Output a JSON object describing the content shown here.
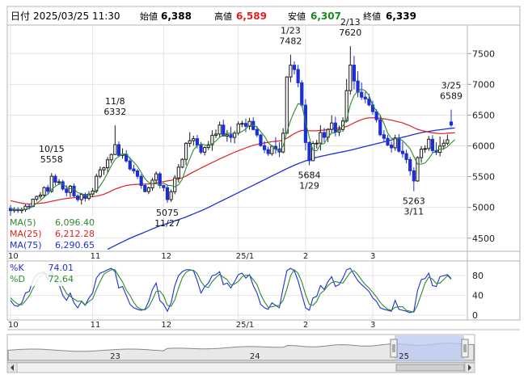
{
  "header": {
    "date_label": "日付",
    "datetime": "2025/03/25 11:30",
    "open_label": "始値",
    "open_value": "6,388",
    "high_label": "高値",
    "high_value": "6,589",
    "low_label": "安値",
    "low_value": "6,307",
    "close_label": "終値",
    "close_value": "6,339"
  },
  "colors": {
    "up": "#1a1a1a",
    "down": "#1c2fd6",
    "ma5": "#2e8b2e",
    "ma25": "#e02020",
    "ma75": "#1c2fd6",
    "k": "#1c2fd6",
    "d": "#2e8b2e",
    "high_value": "#e02020",
    "low_value": "#1a8a1a",
    "navigator_fill": "#b8c8f0",
    "navigator_line": "#888888"
  },
  "legend_main": [
    {
      "label": "MA(5)",
      "value": "6,096.40",
      "color": "#2e8b2e"
    },
    {
      "label": "MA(25)",
      "value": "6,212.28",
      "color": "#e02020"
    },
    {
      "label": "MA(75)",
      "value": "6,290.65",
      "color": "#1c2fd6"
    }
  ],
  "legend_stoch": [
    {
      "label": "%K",
      "value": "74.01",
      "color": "#1c2fd6"
    },
    {
      "label": "%D",
      "value": "72.64",
      "color": "#2e8b2e"
    }
  ],
  "chart_data": {
    "type": "candlestick",
    "x_axis_labels": [
      {
        "label": "10",
        "index": 0
      },
      {
        "label": "11",
        "index": 22
      },
      {
        "label": "12",
        "index": 41
      },
      {
        "label": "25/1",
        "index": 61
      },
      {
        "label": "2",
        "index": 79
      },
      {
        "label": "3",
        "index": 97
      }
    ],
    "price_axis": {
      "ticks": [
        4500,
        5000,
        5500,
        6000,
        6500,
        7000,
        7500
      ],
      "range": [
        4300,
        7950
      ]
    },
    "stoch_axis": {
      "ticks": [
        0,
        40,
        80
      ],
      "range": [
        -8,
        108
      ]
    },
    "annotations": [
      {
        "text1": "10/15",
        "text2": "5558",
        "index": 11,
        "price": 5558,
        "position": "above"
      },
      {
        "text1": "11/8",
        "text2": "6332",
        "index": 28,
        "price": 6332,
        "position": "above"
      },
      {
        "text1": "5075",
        "text2": "11/27",
        "index": 42,
        "price": 5075,
        "position": "below"
      },
      {
        "text1": "1/23",
        "text2": "7482",
        "index": 75,
        "price": 7482,
        "position": "above"
      },
      {
        "text1": "5684",
        "text2": "1/29",
        "index": 80,
        "price": 5684,
        "position": "below"
      },
      {
        "text1": "2/13",
        "text2": "7620",
        "index": 91,
        "price": 7620,
        "position": "above"
      },
      {
        "text1": "5263",
        "text2": "3/11",
        "index": 108,
        "price": 5263,
        "position": "below"
      },
      {
        "text1": "3/25",
        "text2": "6589",
        "index": 118,
        "price": 6589,
        "position": "above"
      }
    ],
    "ohlc": [
      [
        4984,
        5039,
        4865,
        4947
      ],
      [
        4947,
        5003,
        4912,
        4966
      ],
      [
        4966,
        5002,
        4910,
        4947
      ],
      [
        4947,
        4996,
        4902,
        4962
      ],
      [
        4962,
        5050,
        4928,
        5020
      ],
      [
        5020,
        5057,
        4964,
        5016
      ],
      [
        5016,
        5134,
        5003,
        5134
      ],
      [
        5134,
        5191,
        5098,
        5179
      ],
      [
        5179,
        5249,
        5134,
        5200
      ],
      [
        5200,
        5340,
        5158,
        5322
      ],
      [
        5322,
        5366,
        5205,
        5263
      ],
      [
        5263,
        5558,
        5235,
        5506
      ],
      [
        5506,
        5540,
        5358,
        5409
      ],
      [
        5409,
        5461,
        5364,
        5416
      ],
      [
        5416,
        5447,
        5272,
        5300
      ],
      [
        5300,
        5360,
        5181,
        5243
      ],
      [
        5243,
        5363,
        5167,
        5345
      ],
      [
        5345,
        5389,
        5164,
        5186
      ],
      [
        5186,
        5213,
        5093,
        5127
      ],
      [
        5127,
        5238,
        5046,
        5212
      ],
      [
        5212,
        5241,
        5096,
        5148
      ],
      [
        5148,
        5264,
        5113,
        5216
      ],
      [
        5216,
        5315,
        5166,
        5266
      ],
      [
        5266,
        5547,
        5232,
        5506
      ],
      [
        5506,
        5663,
        5471,
        5610
      ],
      [
        5610,
        5661,
        5528,
        5644
      ],
      [
        5644,
        5818,
        5554,
        5773
      ],
      [
        5773,
        5874,
        5719,
        5860
      ],
      [
        5860,
        6332,
        5851,
        6020
      ],
      [
        6020,
        6073,
        5815,
        5844
      ],
      [
        5844,
        5960,
        5792,
        5863
      ],
      [
        5863,
        5930,
        5727,
        5755
      ],
      [
        5755,
        5817,
        5599,
        5625
      ],
      [
        5625,
        5696,
        5547,
        5593
      ],
      [
        5593,
        5625,
        5462,
        5506
      ],
      [
        5506,
        5543,
        5306,
        5356
      ],
      [
        5356,
        5387,
        5245,
        5257
      ],
      [
        5257,
        5339,
        5215,
        5317
      ],
      [
        5317,
        5479,
        5271,
        5443
      ],
      [
        5443,
        5586,
        5400,
        5546
      ],
      [
        5546,
        5578,
        5308,
        5357
      ],
      [
        5357,
        5371,
        5259,
        5320
      ],
      [
        5320,
        5375,
        5075,
        5127
      ],
      [
        5127,
        5291,
        5089,
        5255
      ],
      [
        5255,
        5527,
        5213,
        5479
      ],
      [
        5479,
        5705,
        5405,
        5654
      ],
      [
        5654,
        5800,
        5635,
        5781
      ],
      [
        5781,
        6061,
        5685,
        6042
      ],
      [
        6042,
        6224,
        5979,
        6084
      ],
      [
        6084,
        6165,
        6003,
        6116
      ],
      [
        6116,
        6176,
        5958,
        6012
      ],
      [
        6012,
        6065,
        5867,
        5897
      ],
      [
        5897,
        5992,
        5844,
        5973
      ],
      [
        5973,
        6079,
        5932,
        6018
      ],
      [
        6018,
        6253,
        5919,
        6172
      ],
      [
        6172,
        6265,
        6128,
        6192
      ],
      [
        6192,
        6395,
        6141,
        6338
      ],
      [
        6338,
        6423,
        6155,
        6159
      ],
      [
        6159,
        6258,
        6068,
        6181
      ],
      [
        6181,
        6312,
        6052,
        6137
      ],
      [
        6137,
        6241,
        6042,
        6208
      ],
      [
        6208,
        6398,
        6171,
        6356
      ],
      [
        6356,
        6409,
        6300,
        6365
      ],
      [
        6365,
        6447,
        6222,
        6317
      ],
      [
        6317,
        6455,
        6262,
        6398
      ],
      [
        6398,
        6464,
        6250,
        6265
      ],
      [
        6265,
        6325,
        6141,
        6177
      ],
      [
        6177,
        6194,
        5985,
        6004
      ],
      [
        6004,
        6077,
        5882,
        5938
      ],
      [
        5938,
        5986,
        5836,
        5874
      ],
      [
        5874,
        6014,
        5840,
        5993
      ],
      [
        5993,
        6140,
        5871,
        5951
      ],
      [
        5951,
        6062,
        5816,
        5900
      ],
      [
        5900,
        6286,
        5879,
        6205
      ],
      [
        6205,
        7133,
        6200,
        7120
      ],
      [
        7120,
        7482,
        7034,
        7311
      ],
      [
        7311,
        7374,
        7158,
        7240
      ],
      [
        7240,
        7317,
        6952,
        7025
      ],
      [
        7025,
        7068,
        6629,
        6662
      ],
      [
        6662,
        6760,
        5927,
        6054
      ],
      [
        6054,
        6073,
        5684,
        5759
      ],
      [
        5759,
        6079,
        5755,
        6040
      ],
      [
        6040,
        6098,
        5959,
        6044
      ],
      [
        6044,
        6337,
        5927,
        6217
      ],
      [
        6217,
        6290,
        6062,
        6138
      ],
      [
        6138,
        6286,
        6060,
        6267
      ],
      [
        6267,
        6497,
        6215,
        6372
      ],
      [
        6372,
        6472,
        6153,
        6225
      ],
      [
        6225,
        6330,
        6158,
        6266
      ],
      [
        6266,
        6464,
        6227,
        6405
      ],
      [
        6405,
        7088,
        6379,
        6898
      ],
      [
        6898,
        7620,
        6830,
        7312
      ],
      [
        7312,
        7461,
        6915,
        7054
      ],
      [
        7054,
        7212,
        6788,
        6872
      ],
      [
        6872,
        7030,
        6747,
        6792
      ],
      [
        6792,
        6876,
        6692,
        6762
      ],
      [
        6762,
        6846,
        6644,
        6666
      ],
      [
        6666,
        6732,
        6507,
        6556
      ],
      [
        6556,
        6595,
        6380,
        6425
      ],
      [
        6425,
        6507,
        6155,
        6181
      ],
      [
        6181,
        6254,
        6064,
        6123
      ],
      [
        6123,
        6179,
        5995,
        6013
      ],
      [
        6013,
        6070,
        5893,
        5969
      ],
      [
        5969,
        6182,
        5921,
        6128
      ],
      [
        6128,
        6194,
        5889,
        5913
      ],
      [
        5913,
        6068,
        5809,
        5874
      ],
      [
        5874,
        5939,
        5714,
        5778
      ],
      [
        5778,
        5823,
        5518,
        5595
      ],
      [
        5595,
        5651,
        5263,
        5430
      ],
      [
        5430,
        5830,
        5416,
        5809
      ],
      [
        5809,
        5995,
        5727,
        5946
      ],
      [
        5946,
        6009,
        5887,
        5956
      ],
      [
        5956,
        6159,
        5921,
        6107
      ],
      [
        6107,
        6177,
        5884,
        5924
      ],
      [
        5924,
        6058,
        5849,
        5894
      ],
      [
        5894,
        6152,
        5829,
        5996
      ],
      [
        5996,
        6104,
        5939,
        6043
      ],
      [
        6043,
        6183,
        6011,
        6098
      ],
      [
        6388,
        6589,
        6307,
        6339
      ]
    ],
    "ma5": [
      4978,
      4971,
      4970,
      4965,
      4968,
      4982,
      5019,
      5070,
      5110,
      5170,
      5214,
      5294,
      5340,
      5383,
      5379,
      5327,
      5305,
      5298,
      5240,
      5222,
      5204,
      5190,
      5219,
      5271,
      5350,
      5448,
      5560,
      5679,
      5781,
      5828,
      5868,
      5868,
      5797,
      5736,
      5668,
      5567,
      5467,
      5406,
      5384,
      5383,
      5367,
      5397,
      5359,
      5355,
      5336,
      5367,
      5459,
      5642,
      5788,
      5935,
      6007,
      6030,
      6017,
      6003,
      6034,
      6078,
      6139,
      6176,
      6209,
      6201,
      6203,
      6208,
      6233,
      6277,
      6328,
      6339,
      6304,
      6232,
      6156,
      6052,
      5997,
      5939,
      5923,
      5996,
      6223,
      6416,
      6559,
      6685,
      6668,
      6386,
      6144,
      5929,
      5919,
      6023,
      6040,
      6141,
      6208,
      6213,
      6255,
      6327,
      6425,
      6670,
      6818,
      6888,
      6924,
      6895,
      6818,
      6661,
      6568,
      6494,
      6365,
      6207,
      6123,
      6116,
      6118,
      6084,
      6020,
      5953,
      5828,
      5704,
      5703,
      5721,
      5792,
      5881,
      5927,
      5945,
      5952,
      5985,
      6046,
      6100
    ],
    "ma25": [
      5110,
      5095,
      5080,
      5068,
      5060,
      5055,
      5058,
      5062,
      5068,
      5075,
      5085,
      5100,
      5112,
      5125,
      5136,
      5145,
      5152,
      5158,
      5162,
      5165,
      5168,
      5171,
      5176,
      5184,
      5196,
      5214,
      5240,
      5268,
      5296,
      5318,
      5340,
      5356,
      5366,
      5372,
      5375,
      5376,
      5378,
      5382,
      5389,
      5398,
      5408,
      5420,
      5430,
      5440,
      5451,
      5463,
      5480,
      5510,
      5545,
      5578,
      5608,
      5640,
      5670,
      5700,
      5729,
      5758,
      5787,
      5815,
      5843,
      5870,
      5895,
      5920,
      5944,
      5968,
      5990,
      6010,
      6024,
      6036,
      6048,
      6058,
      6068,
      6074,
      6080,
      6092,
      6125,
      6162,
      6198,
      6230,
      6252,
      6253,
      6246,
      6244,
      6245,
      6252,
      6256,
      6266,
      6276,
      6282,
      6290,
      6300,
      6315,
      6342,
      6375,
      6402,
      6426,
      6446,
      6455,
      6457,
      6454,
      6448,
      6440,
      6430,
      6418,
      6404,
      6389,
      6373,
      6350,
      6326,
      6296,
      6270,
      6252,
      6236,
      6223,
      6212,
      6205,
      6200,
      6200,
      6205,
      6210,
      6212
    ],
    "ma75": [
      null,
      null,
      null,
      null,
      null,
      null,
      null,
      null,
      null,
      null,
      null,
      null,
      null,
      null,
      null,
      null,
      null,
      null,
      null,
      null,
      null,
      null,
      null,
      null,
      null,
      null,
      4320,
      4350,
      4380,
      4410,
      4440,
      4470,
      4498,
      4525,
      4550,
      4575,
      4600,
      4625,
      4650,
      4675,
      4700,
      4720,
      4740,
      4760,
      4780,
      4800,
      4822,
      4845,
      4870,
      4895,
      4920,
      4945,
      4972,
      5000,
      5030,
      5060,
      5090,
      5120,
      5150,
      5180,
      5210,
      5240,
      5270,
      5300,
      5330,
      5360,
      5390,
      5420,
      5450,
      5480,
      5510,
      5540,
      5570,
      5600,
      5630,
      5658,
      5685,
      5710,
      5734,
      5756,
      5776,
      5795,
      5812,
      5828,
      5842,
      5855,
      5868,
      5880,
      5892,
      5904,
      5916,
      5930,
      5945,
      5960,
      5975,
      5990,
      6005,
      6020,
      6035,
      6050,
      6065,
      6080,
      6095,
      6110,
      6125,
      6140,
      6155,
      6170,
      6185,
      6200,
      6215,
      6225,
      6235,
      6245,
      6255,
      6262,
      6270,
      6278,
      6285,
      6291
    ],
    "k": [
      30,
      20,
      18,
      25,
      45,
      48,
      70,
      82,
      85,
      88,
      72,
      90,
      68,
      62,
      40,
      30,
      45,
      25,
      15,
      28,
      20,
      35,
      45,
      75,
      85,
      88,
      92,
      95,
      88,
      55,
      58,
      40,
      22,
      15,
      12,
      10,
      12,
      28,
      52,
      65,
      30,
      22,
      8,
      25,
      60,
      80,
      88,
      92,
      92,
      90,
      70,
      45,
      58,
      65,
      80,
      82,
      88,
      62,
      65,
      55,
      68,
      82,
      85,
      75,
      82,
      60,
      45,
      22,
      15,
      12,
      25,
      20,
      15,
      55,
      90,
      95,
      90,
      70,
      42,
      15,
      10,
      35,
      38,
      60,
      52,
      68,
      78,
      58,
      62,
      75,
      92,
      95,
      82,
      70,
      62,
      55,
      48,
      35,
      28,
      15,
      12,
      10,
      8,
      30,
      12,
      10,
      8,
      5,
      8,
      50,
      72,
      74,
      85,
      60,
      58,
      78,
      80,
      82,
      74
    ],
    "d": [
      35,
      28,
      22,
      21,
      29,
      39,
      54,
      67,
      79,
      85,
      82,
      83,
      77,
      73,
      57,
      44,
      38,
      33,
      28,
      29,
      21,
      28,
      33,
      52,
      68,
      83,
      88,
      92,
      92,
      79,
      67,
      51,
      40,
      26,
      16,
      12,
      11,
      17,
      31,
      48,
      49,
      39,
      20,
      18,
      31,
      55,
      76,
      87,
      91,
      91,
      84,
      68,
      58,
      56,
      68,
      76,
      83,
      77,
      72,
      61,
      63,
      68,
      78,
      81,
      81,
      72,
      62,
      42,
      27,
      16,
      17,
      19,
      20,
      30,
      53,
      80,
      92,
      85,
      67,
      42,
      22,
      20,
      28,
      44,
      50,
      60,
      66,
      68,
      66,
      65,
      76,
      87,
      90,
      82,
      71,
      62,
      55,
      46,
      37,
      26,
      18,
      12,
      10,
      16,
      17,
      17,
      10,
      8,
      6,
      21,
      43,
      65,
      77,
      73,
      64,
      65,
      72,
      80,
      72.64
    ],
    "navigator": {
      "labels": [
        {
          "label": "23",
          "pos": 0.23
        },
        {
          "label": "24",
          "pos": 0.53
        },
        {
          "label": "25",
          "pos": 0.85
        }
      ]
    }
  }
}
